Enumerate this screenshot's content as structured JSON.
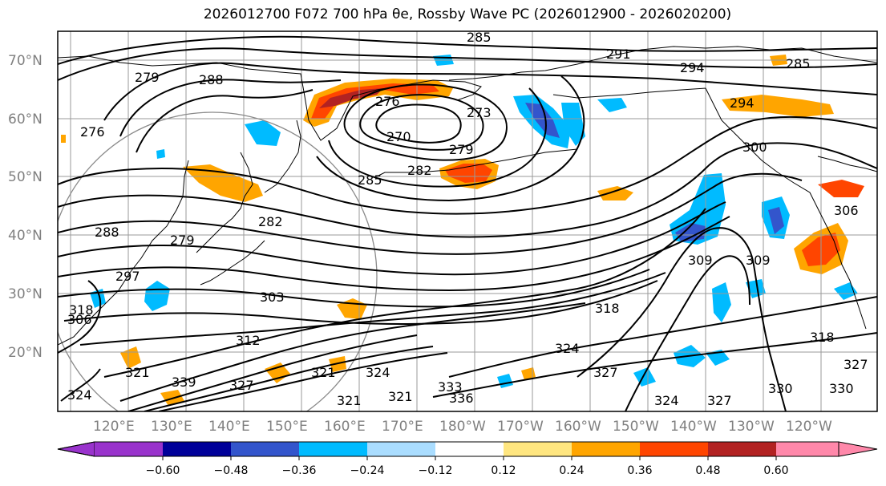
{
  "title": "2026012700 F072 700 hPa θe, Rossby Wave PC (2026012900 - 2026020200)",
  "lat_labels": [
    "70°N",
    "60°N",
    "50°N",
    "40°N",
    "30°N",
    "20°N"
  ],
  "lon_labels": [
    "120°E",
    "130°E",
    "140°E",
    "150°E",
    "160°E",
    "170°E",
    "180°W",
    "170°W",
    "160°W",
    "150°W",
    "140°W",
    "130°W",
    "120°W"
  ],
  "colorbar": {
    "colors": [
      "#9933cc",
      "#000099",
      "#3355cc",
      "#00bbff",
      "#aaddff",
      "#ffffff",
      "#ffe680",
      "#ffa500",
      "#ff4500",
      "#b22222",
      "#ff88aa"
    ],
    "ticks": [
      "−0.60",
      "−0.48",
      "−0.36",
      "−0.24",
      "−0.12",
      "0.12",
      "0.24",
      "0.36",
      "0.48",
      "0.60"
    ]
  },
  "contour_labels": [
    {
      "text": "285"
    },
    {
      "text": "291"
    },
    {
      "text": "294"
    },
    {
      "text": "285"
    },
    {
      "text": "279"
    },
    {
      "text": "288"
    },
    {
      "text": "276"
    },
    {
      "text": "273"
    },
    {
      "text": "270"
    },
    {
      "text": "279"
    },
    {
      "text": "282"
    },
    {
      "text": "285"
    },
    {
      "text": "294"
    },
    {
      "text": "300"
    },
    {
      "text": "276"
    },
    {
      "text": "282"
    },
    {
      "text": "288"
    },
    {
      "text": "279"
    },
    {
      "text": "297"
    },
    {
      "text": "306"
    },
    {
      "text": "303"
    },
    {
      "text": "309"
    },
    {
      "text": "309"
    },
    {
      "text": "306"
    },
    {
      "text": "312"
    },
    {
      "text": "318"
    },
    {
      "text": "324"
    },
    {
      "text": "321"
    },
    {
      "text": "318"
    },
    {
      "text": "327"
    },
    {
      "text": "330"
    },
    {
      "text": "327"
    },
    {
      "text": "324"
    },
    {
      "text": "330"
    },
    {
      "text": "327"
    },
    {
      "text": "333"
    },
    {
      "text": "336"
    },
    {
      "text": "339"
    },
    {
      "text": "321"
    },
    {
      "text": "324"
    },
    {
      "text": "321"
    },
    {
      "text": "318"
    },
    {
      "text": "324"
    },
    {
      "text": "327"
    },
    {
      "text": "321"
    }
  ]
}
